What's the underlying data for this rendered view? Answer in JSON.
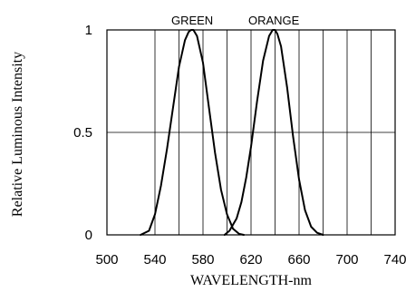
{
  "chart_data": {
    "type": "line",
    "xlabel": "WAVELENGTH-nm",
    "ylabel": "Relative Luminous Intensity",
    "xlim": [
      500,
      740
    ],
    "ylim": [
      0,
      1
    ],
    "x_ticks": [
      500,
      540,
      580,
      620,
      660,
      700,
      740
    ],
    "x_tick_labels": [
      "500",
      "540",
      "580",
      "620",
      "660",
      "700",
      "740"
    ],
    "x_grid": [
      540,
      560,
      580,
      600,
      620,
      640,
      660,
      680,
      700,
      720
    ],
    "y_ticks": [
      0,
      0.5,
      1
    ],
    "y_tick_labels": [
      "0",
      "0.5",
      "1"
    ],
    "grid": true,
    "series": [
      {
        "name": "GREEN",
        "x": [
          528,
          535,
          540,
          545,
          550,
          555,
          560,
          565,
          568,
          570,
          572,
          575,
          580,
          585,
          590,
          595,
          600,
          605,
          610,
          614
        ],
        "y": [
          0,
          0.02,
          0.1,
          0.24,
          0.42,
          0.62,
          0.82,
          0.95,
          0.99,
          1.0,
          1.0,
          0.97,
          0.84,
          0.62,
          0.4,
          0.22,
          0.1,
          0.03,
          0.005,
          0
        ]
      },
      {
        "name": "ORANGE",
        "x": [
          598,
          602,
          608,
          612,
          616,
          620,
          625,
          630,
          635,
          638,
          640,
          642,
          645,
          650,
          655,
          660,
          665,
          670,
          675,
          680
        ],
        "y": [
          0,
          0.02,
          0.08,
          0.16,
          0.28,
          0.43,
          0.65,
          0.85,
          0.97,
          1.0,
          1.0,
          0.98,
          0.92,
          0.72,
          0.48,
          0.27,
          0.12,
          0.04,
          0.01,
          0
        ]
      }
    ]
  }
}
